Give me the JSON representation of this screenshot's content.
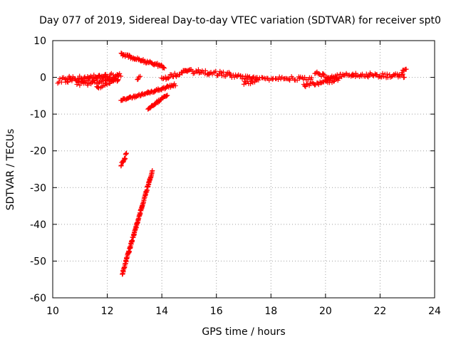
{
  "chart_data": {
    "type": "scatter",
    "title": "Day 077 of 2019, Sidereal Day-to-day VTEC variation (SDTVAR) for receiver spt0",
    "xlabel": "GPS time / hours",
    "ylabel": "SDTVAR / TECUs",
    "xlim": [
      10,
      24
    ],
    "ylim": [
      -60,
      10
    ],
    "xticks": [
      10,
      12,
      14,
      16,
      18,
      20,
      22,
      24
    ],
    "yticks": [
      10,
      0,
      -10,
      -20,
      -30,
      -40,
      -50,
      -60
    ],
    "grid": true,
    "legend": "none",
    "marker": "plus",
    "color": "#ff0000",
    "segments": [
      {
        "from": [
          10.2,
          -1.0
        ],
        "to": [
          12.5,
          0.5
        ],
        "step": 0.04,
        "jitter": 0.8
      },
      {
        "from": [
          10.5,
          -0.5
        ],
        "to": [
          12.4,
          0.2
        ],
        "step": 0.06,
        "jitter": 0.9
      },
      {
        "from": [
          10.9,
          -2.0
        ],
        "to": [
          12.4,
          -0.5
        ],
        "step": 0.05,
        "jitter": 0.6
      },
      {
        "from": [
          11.6,
          -2.8
        ],
        "to": [
          12.4,
          -0.8
        ],
        "step": 0.05,
        "jitter": 0.4
      },
      {
        "from": [
          12.5,
          6.3
        ],
        "to": [
          14.1,
          2.8
        ],
        "step": 0.03,
        "jitter": 0.4
      },
      {
        "from": [
          12.5,
          -6.3
        ],
        "to": [
          13.5,
          -4.2
        ],
        "step": 0.03,
        "jitter": 0.3
      },
      {
        "from": [
          13.5,
          -4.2
        ],
        "to": [
          14.5,
          -2.0
        ],
        "step": 0.03,
        "jitter": 0.3
      },
      {
        "from": [
          13.5,
          -8.5
        ],
        "to": [
          14.2,
          -4.7
        ],
        "step": 0.025,
        "jitter": 0.3
      },
      {
        "from": [
          12.5,
          -24.0
        ],
        "to": [
          12.7,
          -21.0
        ],
        "step": 0.015,
        "jitter": 0.5
      },
      {
        "from": [
          12.55,
          -53.5
        ],
        "to": [
          13.65,
          -25.5
        ],
        "step": 0.008,
        "jitter": 0.4
      },
      {
        "from": [
          13.1,
          -0.3
        ],
        "to": [
          13.2,
          0.0
        ],
        "step": 0.03,
        "jitter": 0.3
      },
      {
        "from": [
          14.0,
          -0.5
        ],
        "to": [
          14.9,
          1.7
        ],
        "step": 0.04,
        "jitter": 0.6
      },
      {
        "from": [
          14.8,
          1.8
        ],
        "to": [
          16.5,
          0.8
        ],
        "step": 0.04,
        "jitter": 0.6
      },
      {
        "from": [
          16.5,
          0.5
        ],
        "to": [
          17.5,
          -0.5
        ],
        "step": 0.04,
        "jitter": 0.5
      },
      {
        "from": [
          17.0,
          -1.5
        ],
        "to": [
          17.5,
          -1.0
        ],
        "step": 0.05,
        "jitter": 0.5
      },
      {
        "from": [
          17.5,
          -0.3
        ],
        "to": [
          19.5,
          -0.3
        ],
        "step": 0.05,
        "jitter": 0.5
      },
      {
        "from": [
          19.2,
          -2.2
        ],
        "to": [
          20.5,
          -0.5
        ],
        "step": 0.04,
        "jitter": 0.5
      },
      {
        "from": [
          19.6,
          1.5
        ],
        "to": [
          20.2,
          -0.5
        ],
        "step": 0.04,
        "jitter": 0.5
      },
      {
        "from": [
          20.0,
          -0.5
        ],
        "to": [
          21.0,
          1.0
        ],
        "step": 0.04,
        "jitter": 0.6
      },
      {
        "from": [
          21.0,
          0.8
        ],
        "to": [
          22.9,
          0.3
        ],
        "step": 0.04,
        "jitter": 0.6
      },
      {
        "from": [
          22.8,
          1.5
        ],
        "to": [
          22.95,
          2.4
        ],
        "step": 0.03,
        "jitter": 0.3
      }
    ]
  }
}
